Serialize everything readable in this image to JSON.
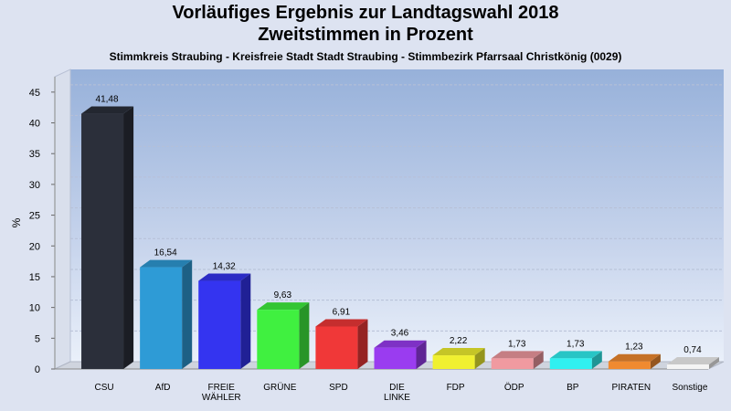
{
  "chart_data": {
    "type": "bar",
    "title": "Vorläufiges Ergebnis zur Landtagswahl 2018",
    "title2": "Zweitstimmen in Prozent",
    "subtitle": "Stimmkreis Straubing - Kreisfreie Stadt Stadt Straubing - Stimmbezirk Pfarrsaal Christkönig (0029)",
    "ylabel": "%",
    "ylim": [
      0,
      47.5
    ],
    "yticks": [
      0,
      5,
      10,
      15,
      20,
      25,
      30,
      35,
      40,
      45
    ],
    "categories": [
      "CSU",
      "AfD",
      "FREIE WÄHLER",
      "GRÜNE",
      "SPD",
      "DIE LINKE",
      "FDP",
      "ÖDP",
      "BP",
      "PIRATEN",
      "Sonstige"
    ],
    "category_lines": [
      [
        "CSU"
      ],
      [
        "AfD"
      ],
      [
        "FREIE",
        "WÄHLER"
      ],
      [
        "GRÜNE"
      ],
      [
        "SPD"
      ],
      [
        "DIE",
        "LINKE"
      ],
      [
        "FDP"
      ],
      [
        "ÖDP"
      ],
      [
        "BP"
      ],
      [
        "PIRATEN"
      ],
      [
        "Sonstige"
      ]
    ],
    "values": [
      41.48,
      16.54,
      14.32,
      9.63,
      6.91,
      3.46,
      2.22,
      1.73,
      1.73,
      1.23,
      0.74
    ],
    "value_labels": [
      "41,48",
      "16,54",
      "14,32",
      "9,63",
      "6,91",
      "3,46",
      "2,22",
      "1,73",
      "1,73",
      "1,23",
      "0,74"
    ],
    "colors": [
      "#2b2f3a",
      "#2e9bd6",
      "#3434f0",
      "#40f040",
      "#f03838",
      "#9a3cf0",
      "#f0f030",
      "#f09aa0",
      "#30f0f0",
      "#f08a30",
      "#f4f4f4"
    ],
    "grid": true,
    "legend": "none"
  }
}
